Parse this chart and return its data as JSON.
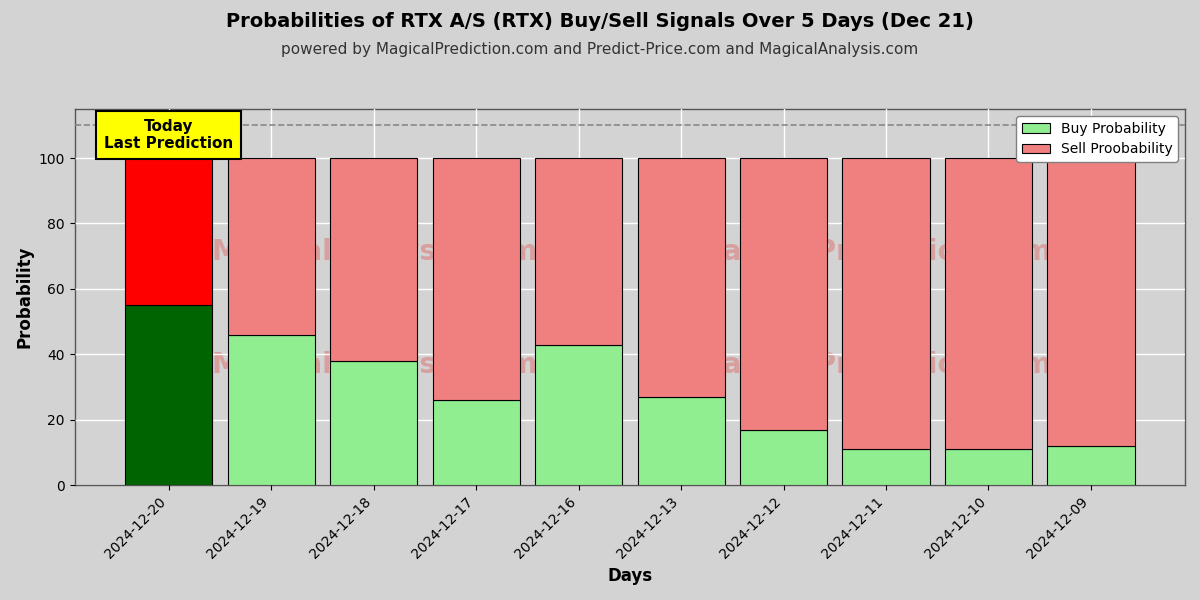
{
  "title": "Probabilities of RTX A/S (RTX) Buy/Sell Signals Over 5 Days (Dec 21)",
  "subtitle": "powered by MagicalPrediction.com and Predict-Price.com and MagicalAnalysis.com",
  "xlabel": "Days",
  "ylabel": "Probability",
  "dates": [
    "2024-12-20",
    "2024-12-19",
    "2024-12-18",
    "2024-12-17",
    "2024-12-16",
    "2024-12-13",
    "2024-12-12",
    "2024-12-11",
    "2024-12-10",
    "2024-12-09"
  ],
  "buy_values": [
    55,
    46,
    38,
    26,
    43,
    27,
    17,
    11,
    11,
    12
  ],
  "sell_values": [
    45,
    54,
    62,
    74,
    57,
    73,
    83,
    89,
    89,
    88
  ],
  "today_buy_color": "#006400",
  "today_sell_color": "#FF0000",
  "buy_color": "#90EE90",
  "sell_color": "#F08080",
  "today_annotation_bg": "#FFFF00",
  "today_annotation_text": "Today\nLast Prediction",
  "legend_buy_label": "Buy Probability",
  "legend_sell_label": "Sell Proobability",
  "ylim": [
    0,
    115
  ],
  "dashed_line_y": 110,
  "title_fontsize": 14,
  "subtitle_fontsize": 11,
  "bar_edgecolor": "#000000",
  "bar_linewidth": 0.8,
  "grid_color": "#FFFFFF",
  "plot_bg_color": "#D3D3D3",
  "fig_bg_color": "#D3D3D3",
  "fig_width": 12,
  "fig_height": 6,
  "bar_width": 0.85
}
